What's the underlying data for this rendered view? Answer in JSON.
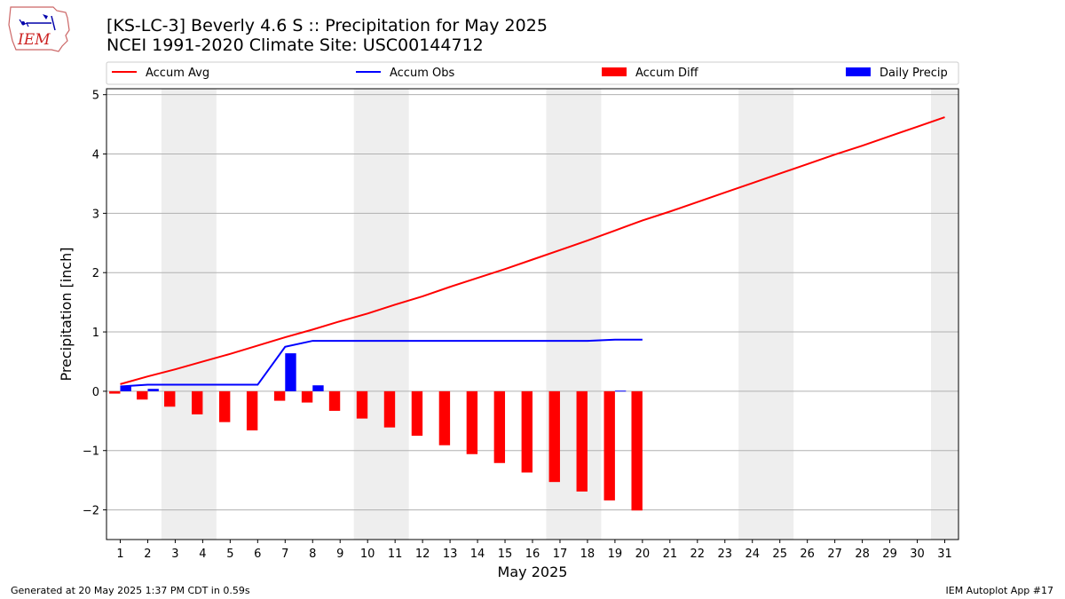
{
  "header": {
    "title": "[KS-LC-3] Beverly 4.6 S :: Precipitation for May 2025",
    "subtitle": "NCEI 1991-2020 Climate Site: USC00144712",
    "logo_text": "IEM"
  },
  "footer": {
    "left": "Generated at 20 May 2025 1:37 PM CDT in 0.59s",
    "right": "IEM Autoplot App #17"
  },
  "colors": {
    "avg": "#ff0000",
    "obs": "#0000ff",
    "diff": "#ff0000",
    "daily": "#0000ff",
    "weekend_band": "#eeeeee",
    "grid": "#b0b0b0"
  },
  "chart_data": {
    "type": "bar",
    "title": "[KS-LC-3] Beverly 4.6 S :: Precipitation for May 2025",
    "xlabel": "May 2025",
    "ylabel": "Precipitation [inch]",
    "xlim": [
      0.5,
      31.5
    ],
    "ylim": [
      -2.5,
      5.1
    ],
    "yticks": [
      -2,
      -1,
      0,
      1,
      2,
      3,
      4,
      5
    ],
    "ytick_labels": [
      "−2",
      "−1",
      "0",
      "1",
      "2",
      "3",
      "4",
      "5"
    ],
    "xticks": [
      1,
      2,
      3,
      4,
      5,
      6,
      7,
      8,
      9,
      10,
      11,
      12,
      13,
      14,
      15,
      16,
      17,
      18,
      19,
      20,
      21,
      22,
      23,
      24,
      25,
      26,
      27,
      28,
      29,
      30,
      31
    ],
    "xtick_labels": [
      "1",
      "2",
      "3",
      "4",
      "5",
      "6",
      "7",
      "8",
      "9",
      "10",
      "11",
      "12",
      "13",
      "14",
      "15",
      "16",
      "17",
      "18",
      "19",
      "20",
      "21",
      "22",
      "23",
      "24",
      "25",
      "26",
      "27",
      "28",
      "29",
      "30",
      "31"
    ],
    "grid": "horizontal",
    "legend_placement": "top",
    "weekend_bands": [
      [
        2.5,
        4.5
      ],
      [
        9.5,
        11.5
      ],
      [
        16.5,
        18.5
      ],
      [
        23.5,
        25.5
      ],
      [
        30.5,
        31.5
      ]
    ],
    "series": [
      {
        "name": "Accum Avg",
        "kind": "line",
        "x": [
          1,
          2,
          3,
          4,
          5,
          6,
          7,
          8,
          9,
          10,
          11,
          12,
          13,
          14,
          15,
          16,
          17,
          18,
          19,
          20,
          21,
          22,
          23,
          24,
          25,
          26,
          27,
          28,
          29,
          30,
          31
        ],
        "values": [
          0.12,
          0.25,
          0.37,
          0.5,
          0.63,
          0.77,
          0.91,
          1.04,
          1.18,
          1.31,
          1.46,
          1.6,
          1.76,
          1.91,
          2.06,
          2.22,
          2.38,
          2.54,
          2.71,
          2.88,
          3.03,
          3.19,
          3.35,
          3.51,
          3.67,
          3.83,
          3.99,
          4.14,
          4.3,
          4.46,
          4.62
        ]
      },
      {
        "name": "Accum Obs",
        "kind": "line",
        "x": [
          1,
          2,
          3,
          4,
          5,
          6,
          7,
          8,
          9,
          10,
          11,
          12,
          13,
          14,
          15,
          16,
          17,
          18,
          19,
          20
        ],
        "values": [
          0.08,
          0.11,
          0.11,
          0.11,
          0.11,
          0.11,
          0.75,
          0.85,
          0.85,
          0.85,
          0.85,
          0.85,
          0.85,
          0.85,
          0.85,
          0.85,
          0.85,
          0.85,
          0.87,
          0.87
        ]
      },
      {
        "name": "Accum Diff",
        "kind": "bar",
        "x": [
          1,
          2,
          3,
          4,
          5,
          6,
          7,
          8,
          9,
          10,
          11,
          12,
          13,
          14,
          15,
          16,
          17,
          18,
          19,
          20
        ],
        "values": [
          -0.04,
          -0.14,
          -0.26,
          -0.39,
          -0.52,
          -0.66,
          -0.16,
          -0.19,
          -0.33,
          -0.46,
          -0.61,
          -0.75,
          -0.91,
          -1.06,
          -1.21,
          -1.37,
          -1.53,
          -1.69,
          -1.84,
          -2.01
        ]
      },
      {
        "name": "Daily Precip",
        "kind": "bar",
        "x": [
          1,
          2,
          3,
          4,
          5,
          6,
          7,
          8,
          9,
          10,
          11,
          12,
          13,
          14,
          15,
          16,
          17,
          18,
          19,
          20
        ],
        "values": [
          0.08,
          0.04,
          0,
          0,
          0,
          0,
          0.64,
          0.1,
          0,
          0,
          0,
          0,
          0,
          0,
          0,
          0,
          0,
          0,
          0.01,
          0
        ]
      }
    ]
  }
}
